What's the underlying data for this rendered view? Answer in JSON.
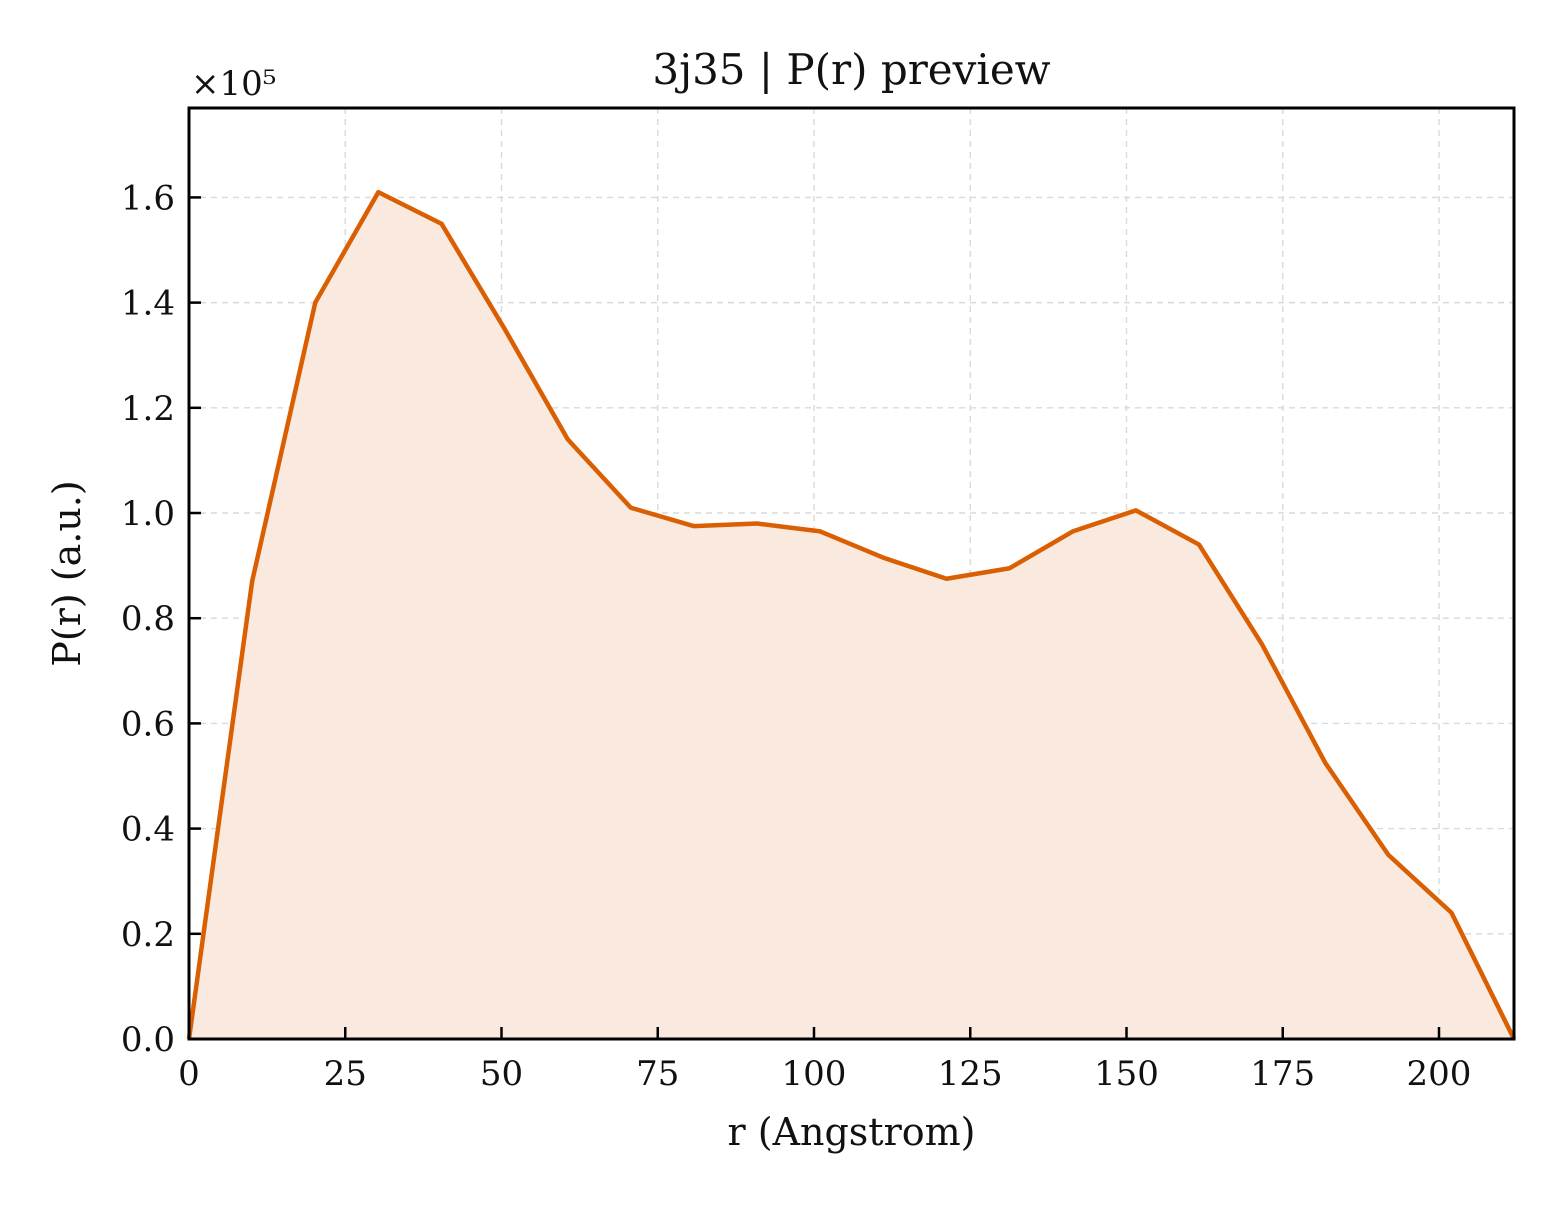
{
  "chart_data": {
    "type": "area",
    "title": "3j35 | P(r) preview",
    "xlabel": "r (Angstrom)",
    "ylabel": "P(r) (a.u.)",
    "y_offset_label": "×10⁵",
    "xlim": [
      0,
      212
    ],
    "ylim": [
      0,
      1.77
    ],
    "x_ticks": [
      0,
      25,
      50,
      75,
      100,
      125,
      150,
      175,
      200
    ],
    "x_tick_labels": [
      "0",
      "25",
      "50",
      "75",
      "100",
      "125",
      "150",
      "175",
      "200"
    ],
    "y_ticks": [
      0,
      0.2,
      0.4,
      0.6,
      0.8,
      1.0,
      1.2,
      1.4,
      1.6
    ],
    "y_tick_labels": [
      "0.0",
      "0.2",
      "0.4",
      "0.6",
      "0.8",
      "1.0",
      "1.2",
      "1.4",
      "1.6"
    ],
    "grid": true,
    "legend": "none",
    "colors": {
      "line": "#d95f02",
      "fill": "#f9e9df"
    },
    "series": [
      {
        "x": [
          0,
          10.1,
          20.2,
          30.3,
          40.4,
          50.5,
          60.6,
          70.7,
          80.8,
          90.9,
          101,
          111.1,
          121.2,
          131.3,
          141.4,
          151.5,
          161.6,
          171.7,
          181.8,
          191.9,
          202,
          212
        ],
        "values": [
          0.0,
          0.87,
          1.4,
          1.61,
          1.55,
          1.35,
          1.14,
          1.01,
          0.975,
          0.98,
          0.965,
          0.915,
          0.875,
          0.895,
          0.965,
          1.005,
          0.94,
          0.75,
          0.525,
          0.35,
          0.24,
          0.0
        ]
      }
    ]
  }
}
